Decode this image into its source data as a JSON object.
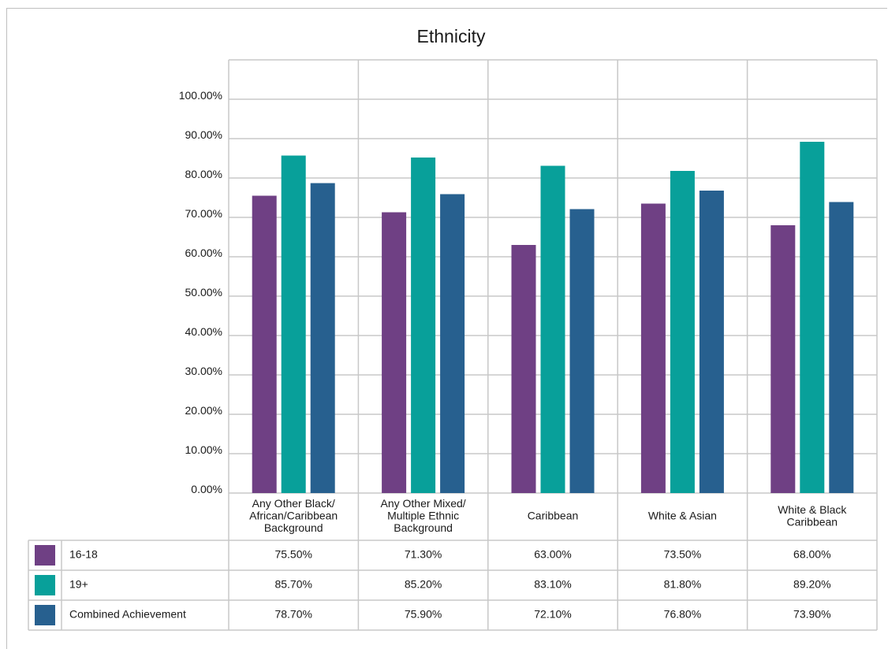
{
  "chart_data": {
    "type": "bar",
    "title": "Ethnicity",
    "categories": [
      [
        "Any Other Black/",
        "African/Caribbean",
        "Background"
      ],
      [
        "Any Other Mixed/",
        "Multiple Ethnic",
        "Background"
      ],
      [
        "Caribbean"
      ],
      [
        "White & Asian"
      ],
      [
        "White & Black",
        "Caribbean"
      ]
    ],
    "series": [
      {
        "name": "16-18",
        "color": "#6f4084",
        "values": [
          75.5,
          71.3,
          63.0,
          73.5,
          68.0
        ],
        "labels": [
          "75.50%",
          "71.30%",
          "63.00%",
          "73.50%",
          "68.00%"
        ]
      },
      {
        "name": "19+",
        "color": "#08a09a",
        "values": [
          85.7,
          85.2,
          83.1,
          81.8,
          89.2
        ],
        "labels": [
          "85.70%",
          "85.20%",
          "83.10%",
          "81.80%",
          "89.20%"
        ]
      },
      {
        "name": "Combined Achievement",
        "color": "#27608f",
        "values": [
          78.7,
          75.9,
          72.1,
          76.8,
          73.9
        ],
        "labels": [
          "78.70%",
          "75.90%",
          "72.10%",
          "76.80%",
          "73.90%"
        ]
      }
    ],
    "y_ticks": [
      "0.00%",
      "10.00%",
      "20.00%",
      "30.00%",
      "40.00%",
      "50.00%",
      "60.00%",
      "70.00%",
      "80.00%",
      "90.00%",
      "100.00%"
    ],
    "ylim": [
      0,
      100
    ],
    "grid": true,
    "legend": "data-table-below"
  }
}
